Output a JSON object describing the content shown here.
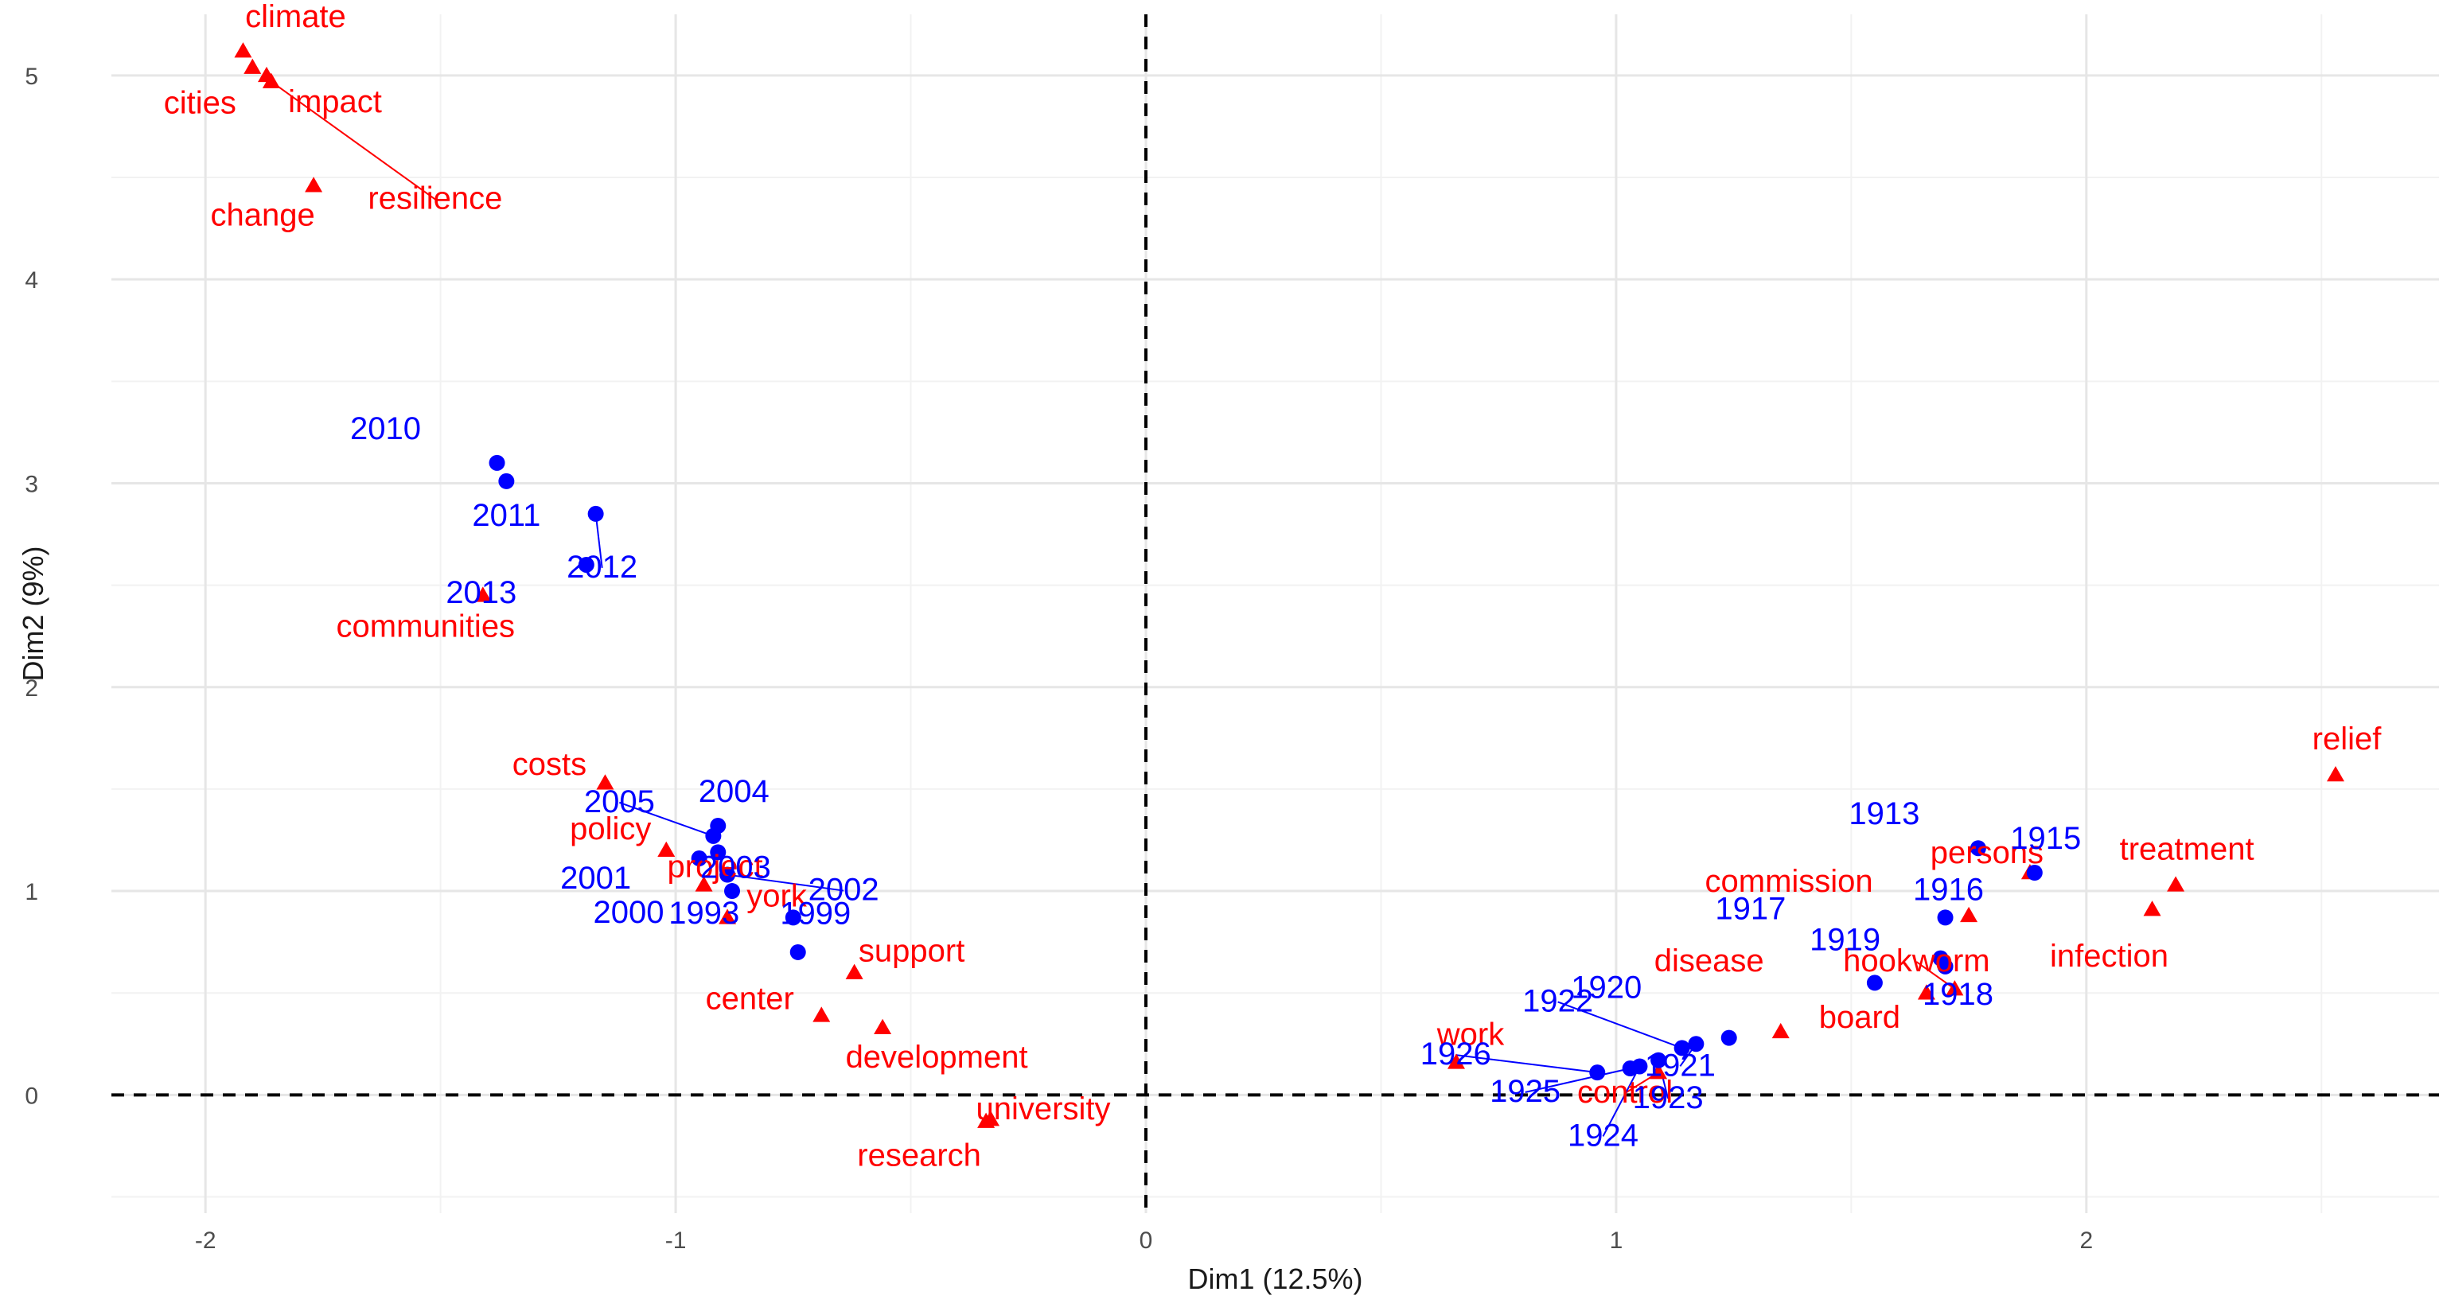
{
  "chart_data": {
    "type": "scatter",
    "title": "",
    "xlabel": "Dim1 (12.5%)",
    "ylabel": "Dim2 (9%)",
    "xlim": [
      -2.2,
      2.75
    ],
    "ylim": [
      -0.58,
      5.3
    ],
    "x_ticks": [
      -2,
      -1,
      0,
      1,
      2
    ],
    "x_tick_labels": [
      "-2",
      "-1",
      "0",
      "1",
      "2"
    ],
    "y_ticks": [
      0,
      1,
      2,
      3,
      4,
      5
    ],
    "y_tick_labels": [
      "0",
      "1",
      "2",
      "3",
      "4",
      "5"
    ],
    "grid": true,
    "reference_lines": {
      "x": 0,
      "y": 0,
      "style": "dashed"
    },
    "colors": {
      "words": "#ff0000",
      "years": "#0000ff",
      "grid": "#e6e6e6"
    },
    "series": [
      {
        "name": "words",
        "marker": "triangle",
        "color": "#ff0000",
        "points": [
          {
            "label": "climate",
            "x": -1.92,
            "y": 5.12
          },
          {
            "label": "cities",
            "x": -1.9,
            "y": 5.04
          },
          {
            "label": "impact",
            "x": -1.87,
            "y": 5.0
          },
          {
            "label": "resilience",
            "x": -1.86,
            "y": 4.97
          },
          {
            "label": "change",
            "x": -1.77,
            "y": 4.46
          },
          {
            "label": "communities",
            "x": -1.41,
            "y": 2.45
          },
          {
            "label": "costs",
            "x": -1.15,
            "y": 1.53
          },
          {
            "label": "policy",
            "x": -1.02,
            "y": 1.2
          },
          {
            "label": "project",
            "x": -0.94,
            "y": 1.03
          },
          {
            "label": "york",
            "x": -0.89,
            "y": 0.87
          },
          {
            "label": "support",
            "x": -0.62,
            "y": 0.6
          },
          {
            "label": "center",
            "x": -0.69,
            "y": 0.39
          },
          {
            "label": "development",
            "x": -0.56,
            "y": 0.33
          },
          {
            "label": "research",
            "x": -0.34,
            "y": -0.13
          },
          {
            "label": "university",
            "x": -0.33,
            "y": -0.12
          },
          {
            "label": "work",
            "x": 0.66,
            "y": 0.16
          },
          {
            "label": "control",
            "x": 1.09,
            "y": 0.11
          },
          {
            "label": "disease",
            "x": 1.35,
            "y": 0.31
          },
          {
            "label": "board",
            "x": 1.66,
            "y": 0.5
          },
          {
            "label": "hookworm",
            "x": 1.72,
            "y": 0.52
          },
          {
            "label": "commission",
            "x": 1.75,
            "y": 0.88
          },
          {
            "label": "persons",
            "x": 1.88,
            "y": 1.09
          },
          {
            "label": "treatment",
            "x": 2.19,
            "y": 1.03
          },
          {
            "label": "infection",
            "x": 2.14,
            "y": 0.91
          },
          {
            "label": "relief",
            "x": 2.53,
            "y": 1.57
          }
        ]
      },
      {
        "name": "years",
        "marker": "circle",
        "color": "#0000ff",
        "points": [
          {
            "label": "2010",
            "x": -1.38,
            "y": 3.1
          },
          {
            "label": "2011",
            "x": -1.36,
            "y": 3.01
          },
          {
            "label": "2012",
            "x": -1.17,
            "y": 2.85
          },
          {
            "label": "2013",
            "x": -1.19,
            "y": 2.6
          },
          {
            "label": "2004",
            "x": -0.91,
            "y": 1.32
          },
          {
            "label": "2005",
            "x": -0.92,
            "y": 1.27
          },
          {
            "label": "2003",
            "x": -0.91,
            "y": 1.19
          },
          {
            "label": "2001",
            "x": -0.95,
            "y": 1.16
          },
          {
            "label": "2002",
            "x": -0.89,
            "y": 1.08
          },
          {
            "label": "2000",
            "x": -0.88,
            "y": 1.0
          },
          {
            "label": "1999",
            "x": -0.75,
            "y": 0.87
          },
          {
            "label": "1993",
            "x": -0.74,
            "y": 0.7
          },
          {
            "label": "1913",
            "x": 1.77,
            "y": 1.21
          },
          {
            "label": "1915",
            "x": 1.89,
            "y": 1.09
          },
          {
            "label": "1916",
            "x": 1.7,
            "y": 0.87
          },
          {
            "label": "1919",
            "x": 1.69,
            "y": 0.67
          },
          {
            "label": "1918",
            "x": 1.7,
            "y": 0.63
          },
          {
            "label": "1917",
            "x": 1.55,
            "y": 0.55
          },
          {
            "label": "1920",
            "x": 1.24,
            "y": 0.28
          },
          {
            "label": "1921",
            "x": 1.17,
            "y": 0.25
          },
          {
            "label": "1922",
            "x": 1.14,
            "y": 0.23
          },
          {
            "label": "1923",
            "x": 1.09,
            "y": 0.17
          },
          {
            "label": "1924",
            "x": 1.05,
            "y": 0.14
          },
          {
            "label": "1925",
            "x": 1.03,
            "y": 0.13
          },
          {
            "label": "1926",
            "x": 0.96,
            "y": 0.11
          }
        ]
      }
    ]
  }
}
